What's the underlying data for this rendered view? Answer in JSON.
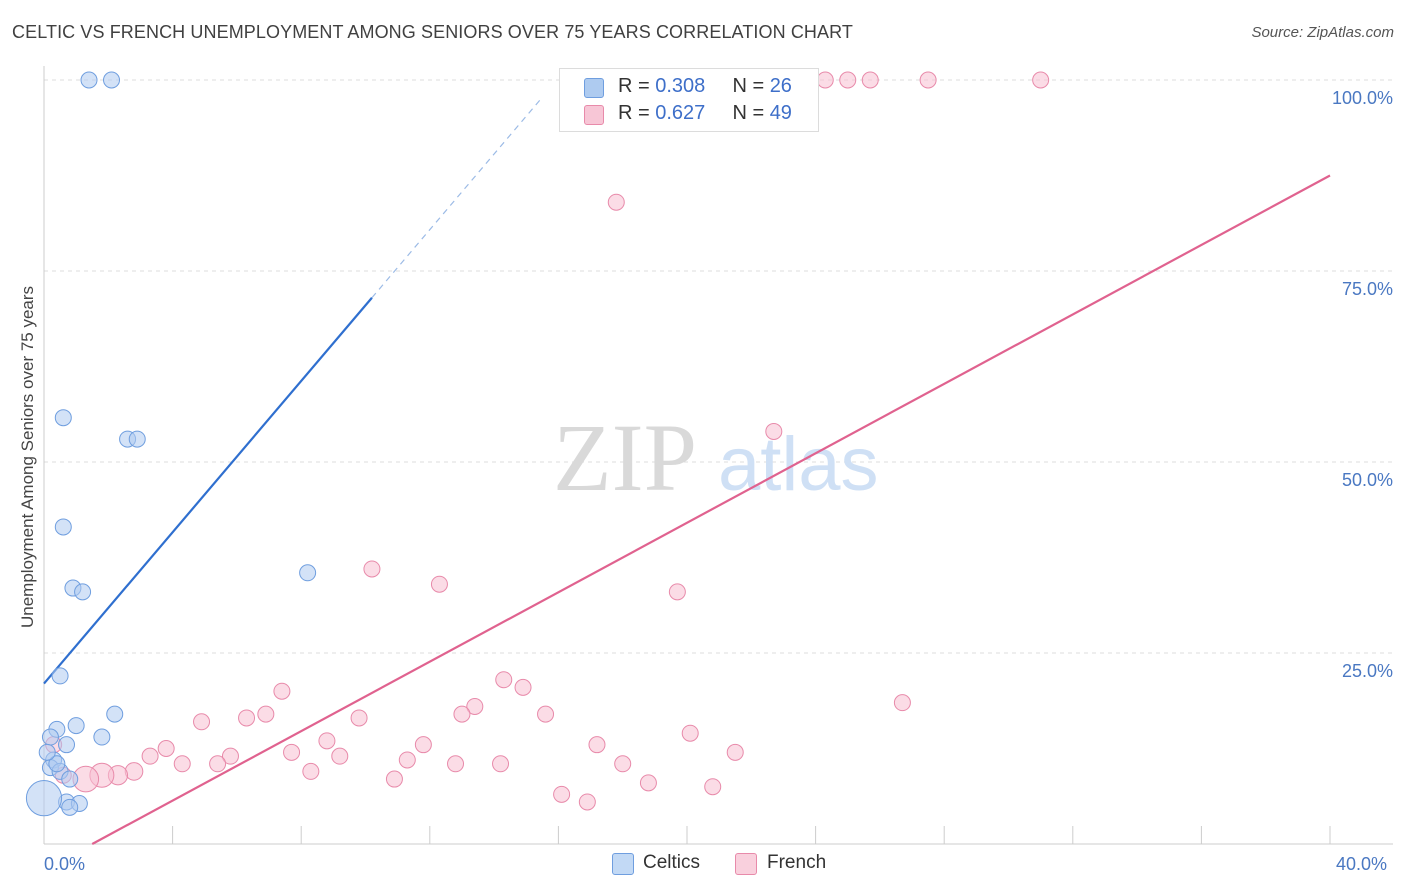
{
  "title": "CELTIC VS FRENCH UNEMPLOYMENT AMONG SENIORS OVER 75 YEARS CORRELATION CHART",
  "source": "Source: ZipAtlas.com",
  "watermark": {
    "zip": "ZIP",
    "atlas": "atlas"
  },
  "legend": {
    "r_label": "R =",
    "n_label": "N =",
    "rows": [
      {
        "r": "0.308",
        "n": "26"
      },
      {
        "r": "0.627",
        "n": "49"
      }
    ]
  },
  "bottom_legend": [
    "Celtics",
    "French"
  ],
  "colors": {
    "celtics_fill": "#aecbf0",
    "celtics_stroke": "#6f9edf",
    "celtics_line": "#2f6fcf",
    "french_fill": "#f7bfd1",
    "french_stroke": "#e88aaa",
    "french_line": "#e0628f",
    "tick_text": "#4a78c2",
    "grid": "#dddddd"
  },
  "chart_data": {
    "type": "scatter",
    "title": "CELTIC VS FRENCH UNEMPLOYMENT AMONG SENIORS OVER 75 YEARS CORRELATION CHART",
    "xlabel": "",
    "ylabel": "Unemployment Among Seniors over 75 years",
    "xlim": [
      0,
      40
    ],
    "ylim": [
      0,
      100
    ],
    "x_tick_labels": [
      "0.0%",
      "40.0%"
    ],
    "y_tick_labels": [
      "25.0%",
      "50.0%",
      "75.0%",
      "100.0%"
    ],
    "y_ticks": [
      25,
      50,
      75,
      100
    ],
    "series": [
      {
        "name": "Celtics",
        "r": 0.308,
        "n": 26,
        "trend": {
          "x0": 0.0,
          "y0": 21.0,
          "x1": 10.2,
          "y1": 71.5,
          "dash_to_x": 15.5
        },
        "points": [
          {
            "x": 1.4,
            "y": 100,
            "s": 1
          },
          {
            "x": 2.1,
            "y": 100,
            "s": 1
          },
          {
            "x": 0.6,
            "y": 55.8,
            "s": 1
          },
          {
            "x": 2.6,
            "y": 53.0,
            "s": 1
          },
          {
            "x": 2.9,
            "y": 53.0,
            "s": 1
          },
          {
            "x": 0.6,
            "y": 41.5,
            "s": 1
          },
          {
            "x": 0.9,
            "y": 33.5,
            "s": 1
          },
          {
            "x": 1.2,
            "y": 33.0,
            "s": 1
          },
          {
            "x": 8.2,
            "y": 35.5,
            "s": 1
          },
          {
            "x": 0.5,
            "y": 22.0,
            "s": 1
          },
          {
            "x": 2.2,
            "y": 17.0,
            "s": 1
          },
          {
            "x": 1.0,
            "y": 15.5,
            "s": 1
          },
          {
            "x": 0.4,
            "y": 15.0,
            "s": 1
          },
          {
            "x": 1.8,
            "y": 14.0,
            "s": 1
          },
          {
            "x": 0.2,
            "y": 14.0,
            "s": 1
          },
          {
            "x": 0.7,
            "y": 13.0,
            "s": 1
          },
          {
            "x": 0.3,
            "y": 11.0,
            "s": 1
          },
          {
            "x": 0.2,
            "y": 10.0,
            "s": 1
          },
          {
            "x": 0.5,
            "y": 9.5,
            "s": 1
          },
          {
            "x": 0.8,
            "y": 8.5,
            "s": 1
          },
          {
            "x": 0.7,
            "y": 5.5,
            "s": 1
          },
          {
            "x": 1.1,
            "y": 5.3,
            "s": 1
          },
          {
            "x": 0.8,
            "y": 4.8,
            "s": 1
          },
          {
            "x": 0.0,
            "y": 6.0,
            "s": 2.2
          },
          {
            "x": 0.4,
            "y": 10.5,
            "s": 1
          },
          {
            "x": 0.1,
            "y": 12.0,
            "s": 1
          }
        ]
      },
      {
        "name": "French",
        "r": 0.627,
        "n": 49,
        "trend": {
          "x0": 1.5,
          "y0": 0.0,
          "x1": 40.0,
          "y1": 87.5
        },
        "points": [
          {
            "x": 24.3,
            "y": 100,
            "s": 1
          },
          {
            "x": 25.0,
            "y": 100,
            "s": 1
          },
          {
            "x": 25.7,
            "y": 100,
            "s": 1
          },
          {
            "x": 27.5,
            "y": 100,
            "s": 1
          },
          {
            "x": 31.0,
            "y": 100,
            "s": 1
          },
          {
            "x": 17.8,
            "y": 84.0,
            "s": 1
          },
          {
            "x": 22.7,
            "y": 54.0,
            "s": 1
          },
          {
            "x": 10.2,
            "y": 36.0,
            "s": 1
          },
          {
            "x": 12.3,
            "y": 34.0,
            "s": 1
          },
          {
            "x": 19.7,
            "y": 33.0,
            "s": 1
          },
          {
            "x": 14.3,
            "y": 21.5,
            "s": 1
          },
          {
            "x": 14.9,
            "y": 20.5,
            "s": 1
          },
          {
            "x": 7.4,
            "y": 20.0,
            "s": 1
          },
          {
            "x": 26.7,
            "y": 18.5,
            "s": 1
          },
          {
            "x": 13.4,
            "y": 18.0,
            "s": 1
          },
          {
            "x": 13.0,
            "y": 17.0,
            "s": 1
          },
          {
            "x": 15.6,
            "y": 17.0,
            "s": 1
          },
          {
            "x": 6.9,
            "y": 17.0,
            "s": 1
          },
          {
            "x": 6.3,
            "y": 16.5,
            "s": 1
          },
          {
            "x": 9.8,
            "y": 16.5,
            "s": 1
          },
          {
            "x": 4.9,
            "y": 16.0,
            "s": 1
          },
          {
            "x": 20.1,
            "y": 14.5,
            "s": 1
          },
          {
            "x": 8.8,
            "y": 13.5,
            "s": 1
          },
          {
            "x": 11.8,
            "y": 13.0,
            "s": 1
          },
          {
            "x": 17.2,
            "y": 13.0,
            "s": 1
          },
          {
            "x": 7.7,
            "y": 12.0,
            "s": 1
          },
          {
            "x": 21.5,
            "y": 12.0,
            "s": 1
          },
          {
            "x": 3.8,
            "y": 12.5,
            "s": 1
          },
          {
            "x": 3.3,
            "y": 11.5,
            "s": 1
          },
          {
            "x": 9.2,
            "y": 11.5,
            "s": 1
          },
          {
            "x": 5.8,
            "y": 11.5,
            "s": 1
          },
          {
            "x": 4.3,
            "y": 10.5,
            "s": 1
          },
          {
            "x": 5.4,
            "y": 10.5,
            "s": 1
          },
          {
            "x": 11.3,
            "y": 11.0,
            "s": 1
          },
          {
            "x": 12.8,
            "y": 10.5,
            "s": 1
          },
          {
            "x": 14.2,
            "y": 10.5,
            "s": 1
          },
          {
            "x": 18.0,
            "y": 10.5,
            "s": 1
          },
          {
            "x": 2.8,
            "y": 9.5,
            "s": 1.1
          },
          {
            "x": 8.3,
            "y": 9.5,
            "s": 1
          },
          {
            "x": 2.3,
            "y": 9.0,
            "s": 1.2
          },
          {
            "x": 1.8,
            "y": 9.0,
            "s": 1.5
          },
          {
            "x": 1.3,
            "y": 8.5,
            "s": 1.6
          },
          {
            "x": 10.9,
            "y": 8.5,
            "s": 1
          },
          {
            "x": 18.8,
            "y": 8.0,
            "s": 1
          },
          {
            "x": 20.8,
            "y": 7.5,
            "s": 1
          },
          {
            "x": 16.1,
            "y": 6.5,
            "s": 1
          },
          {
            "x": 16.9,
            "y": 5.5,
            "s": 1
          },
          {
            "x": 0.3,
            "y": 13.0,
            "s": 1
          },
          {
            "x": 0.6,
            "y": 9.0,
            "s": 1
          }
        ]
      }
    ]
  }
}
